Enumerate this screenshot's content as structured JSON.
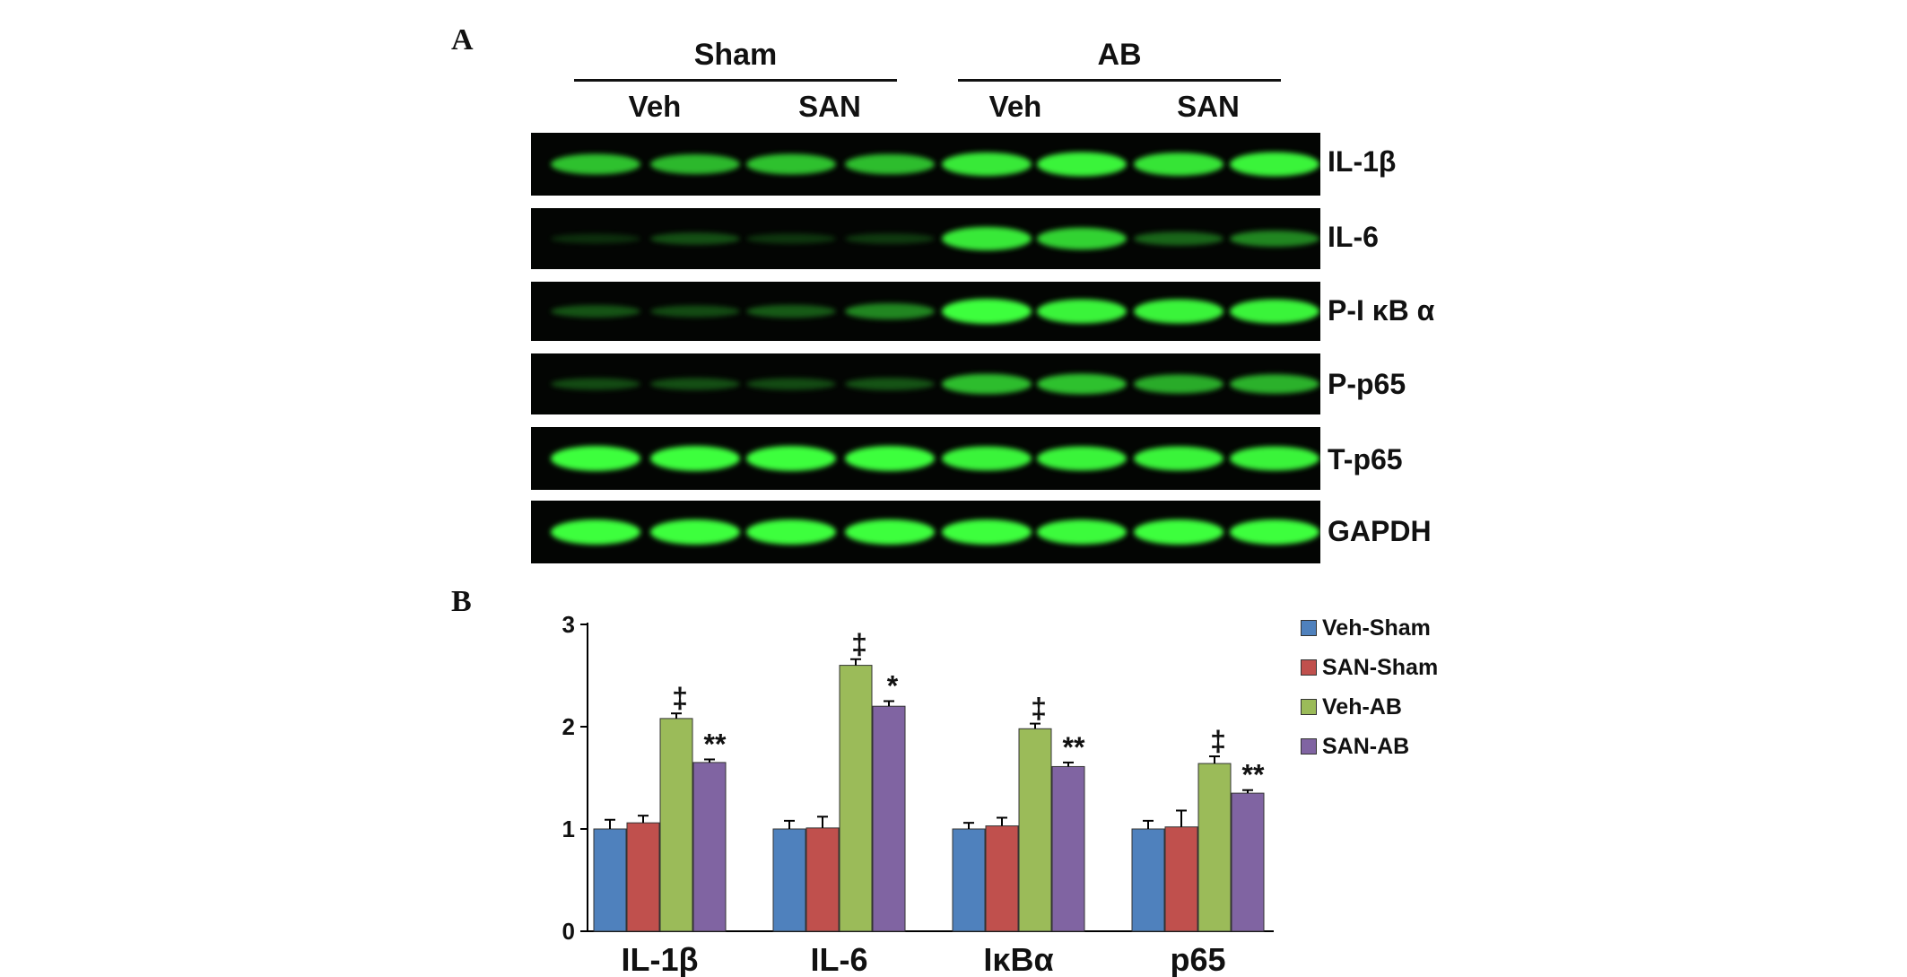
{
  "panels": {
    "a": "A",
    "b": "B"
  },
  "blot": {
    "groups": [
      "Sham",
      "AB"
    ],
    "lanes": [
      "Veh",
      "SAN",
      "Veh",
      "SAN"
    ],
    "proteins": [
      "IL-1β",
      "IL-6",
      "P-I κB α",
      "P-p65",
      "T-p65",
      "GAPDH"
    ],
    "band_color": "#3cff3c",
    "intensities": [
      [
        0.72,
        0.68,
        0.72,
        0.7,
        0.9,
        0.95,
        0.88,
        0.95
      ],
      [
        0.05,
        0.2,
        0.08,
        0.1,
        0.9,
        0.8,
        0.3,
        0.45
      ],
      [
        0.22,
        0.18,
        0.25,
        0.45,
        1.0,
        0.95,
        0.95,
        0.95
      ],
      [
        0.18,
        0.2,
        0.18,
        0.22,
        0.7,
        0.72,
        0.62,
        0.65
      ],
      [
        1.0,
        1.0,
        1.0,
        1.0,
        0.95,
        0.95,
        0.95,
        0.95
      ],
      [
        1.0,
        1.0,
        1.0,
        1.0,
        1.0,
        0.98,
        1.0,
        1.0
      ]
    ]
  },
  "chart_data": {
    "type": "bar",
    "categories": [
      "IL-1β",
      "IL-6",
      "IκBα",
      "p65"
    ],
    "series": [
      {
        "name": "Veh-Sham",
        "color": "#4f81bd",
        "values": [
          1.0,
          1.0,
          1.0,
          1.0
        ],
        "errors": [
          0.09,
          0.08,
          0.06,
          0.08
        ],
        "annotations": [
          "",
          "",
          "",
          ""
        ]
      },
      {
        "name": "SAN-Sham",
        "color": "#c0504d",
        "values": [
          1.06,
          1.01,
          1.03,
          1.02
        ],
        "errors": [
          0.07,
          0.11,
          0.08,
          0.16
        ],
        "annotations": [
          "",
          "",
          "",
          ""
        ]
      },
      {
        "name": "Veh-AB",
        "color": "#9bbb59",
        "values": [
          2.08,
          2.6,
          1.98,
          1.64
        ],
        "errors": [
          0.05,
          0.06,
          0.05,
          0.07
        ],
        "annotations": [
          "‡",
          "‡",
          "‡",
          "‡"
        ]
      },
      {
        "name": "SAN-AB",
        "color": "#8064a2",
        "values": [
          1.65,
          2.2,
          1.61,
          1.35
        ],
        "errors": [
          0.03,
          0.05,
          0.04,
          0.03
        ],
        "annotations": [
          "**",
          "*",
          "**",
          "**"
        ]
      }
    ],
    "title": "",
    "xlabel": "",
    "ylabel": "",
    "ylim": [
      0,
      3
    ],
    "yticks": [
      "0",
      "1",
      "2",
      "3"
    ],
    "grid": false,
    "legend": "right"
  }
}
